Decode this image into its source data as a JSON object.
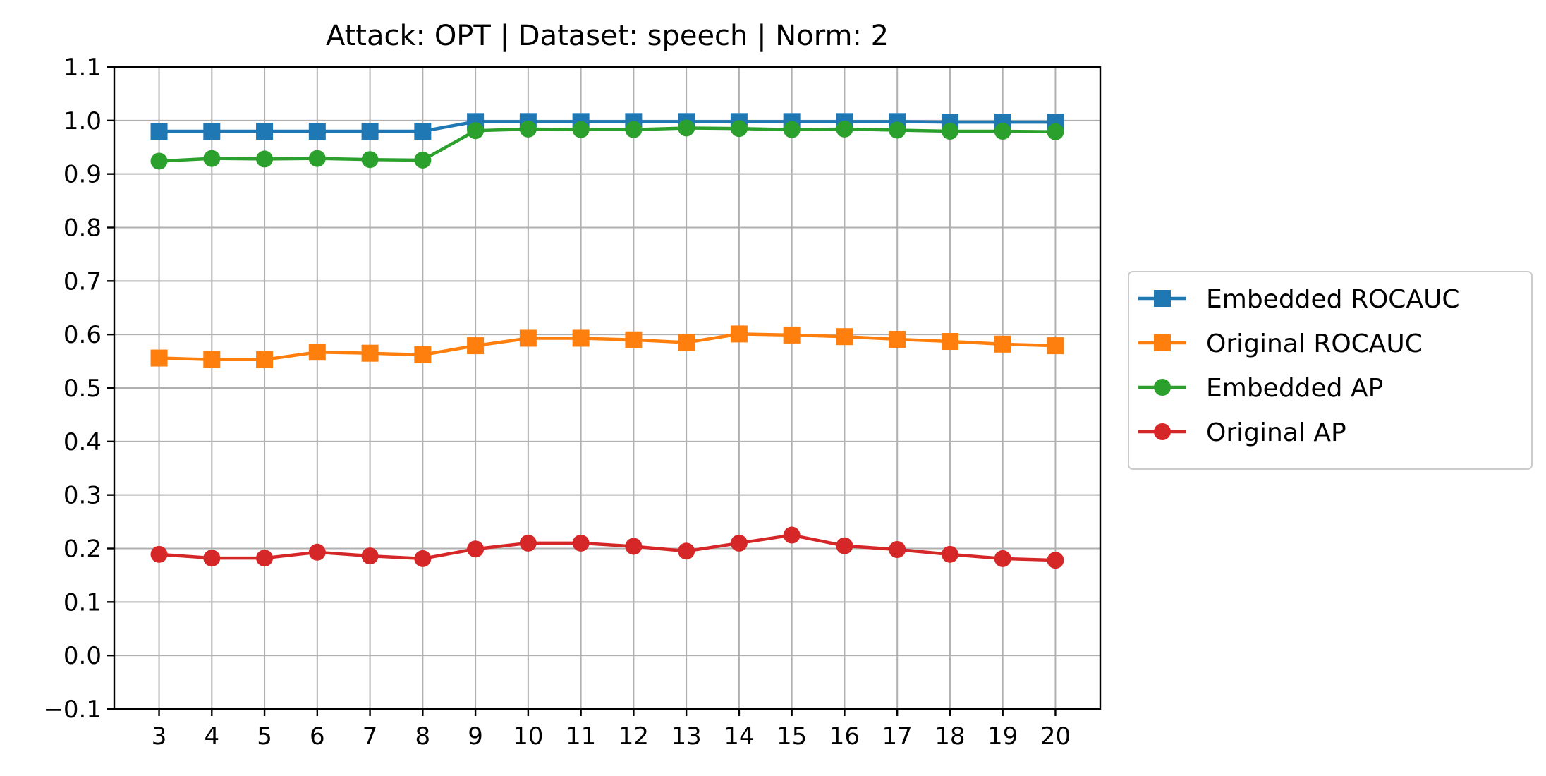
{
  "chart_data": {
    "type": "line",
    "title": "Attack: OPT | Dataset: speech | Norm: 2",
    "xlabel": "",
    "ylabel": "",
    "x": [
      3,
      4,
      5,
      6,
      7,
      8,
      9,
      10,
      11,
      12,
      13,
      14,
      15,
      16,
      17,
      18,
      19,
      20
    ],
    "xlim": [
      2.15,
      20.85
    ],
    "ylim": [
      -0.1,
      1.1
    ],
    "yticks": [
      -0.1,
      0.0,
      0.1,
      0.2,
      0.3,
      0.4,
      0.5,
      0.6,
      0.7,
      0.8,
      0.9,
      1.0,
      1.1
    ],
    "ytick_labels": [
      "−0.1",
      "0.0",
      "0.1",
      "0.2",
      "0.3",
      "0.4",
      "0.5",
      "0.6",
      "0.7",
      "0.8",
      "0.9",
      "1.0",
      "1.1"
    ],
    "xtick_labels": [
      "3",
      "4",
      "5",
      "6",
      "7",
      "8",
      "9",
      "10",
      "11",
      "12",
      "13",
      "14",
      "15",
      "16",
      "17",
      "18",
      "19",
      "20"
    ],
    "grid": true,
    "legend_position": "outside-right",
    "series": [
      {
        "name": "Embedded ROCAUC",
        "color": "#1f77b4",
        "marker": "square",
        "values": [
          0.98,
          0.98,
          0.98,
          0.98,
          0.98,
          0.98,
          0.998,
          0.998,
          0.998,
          0.998,
          0.998,
          0.998,
          0.998,
          0.998,
          0.998,
          0.997,
          0.997,
          0.997
        ]
      },
      {
        "name": "Original ROCAUC",
        "color": "#ff7f0e",
        "marker": "square",
        "values": [
          0.556,
          0.553,
          0.553,
          0.567,
          0.565,
          0.562,
          0.579,
          0.593,
          0.593,
          0.59,
          0.585,
          0.601,
          0.599,
          0.596,
          0.591,
          0.587,
          0.582,
          0.579
        ]
      },
      {
        "name": "Embedded AP",
        "color": "#2ca02c",
        "marker": "circle",
        "values": [
          0.924,
          0.929,
          0.928,
          0.929,
          0.927,
          0.926,
          0.981,
          0.984,
          0.983,
          0.983,
          0.986,
          0.985,
          0.983,
          0.984,
          0.982,
          0.98,
          0.98,
          0.979
        ]
      },
      {
        "name": "Original AP",
        "color": "#d62728",
        "marker": "circle",
        "values": [
          0.189,
          0.182,
          0.182,
          0.193,
          0.186,
          0.181,
          0.199,
          0.21,
          0.21,
          0.204,
          0.195,
          0.21,
          0.225,
          0.205,
          0.198,
          0.189,
          0.181,
          0.178
        ]
      }
    ]
  }
}
